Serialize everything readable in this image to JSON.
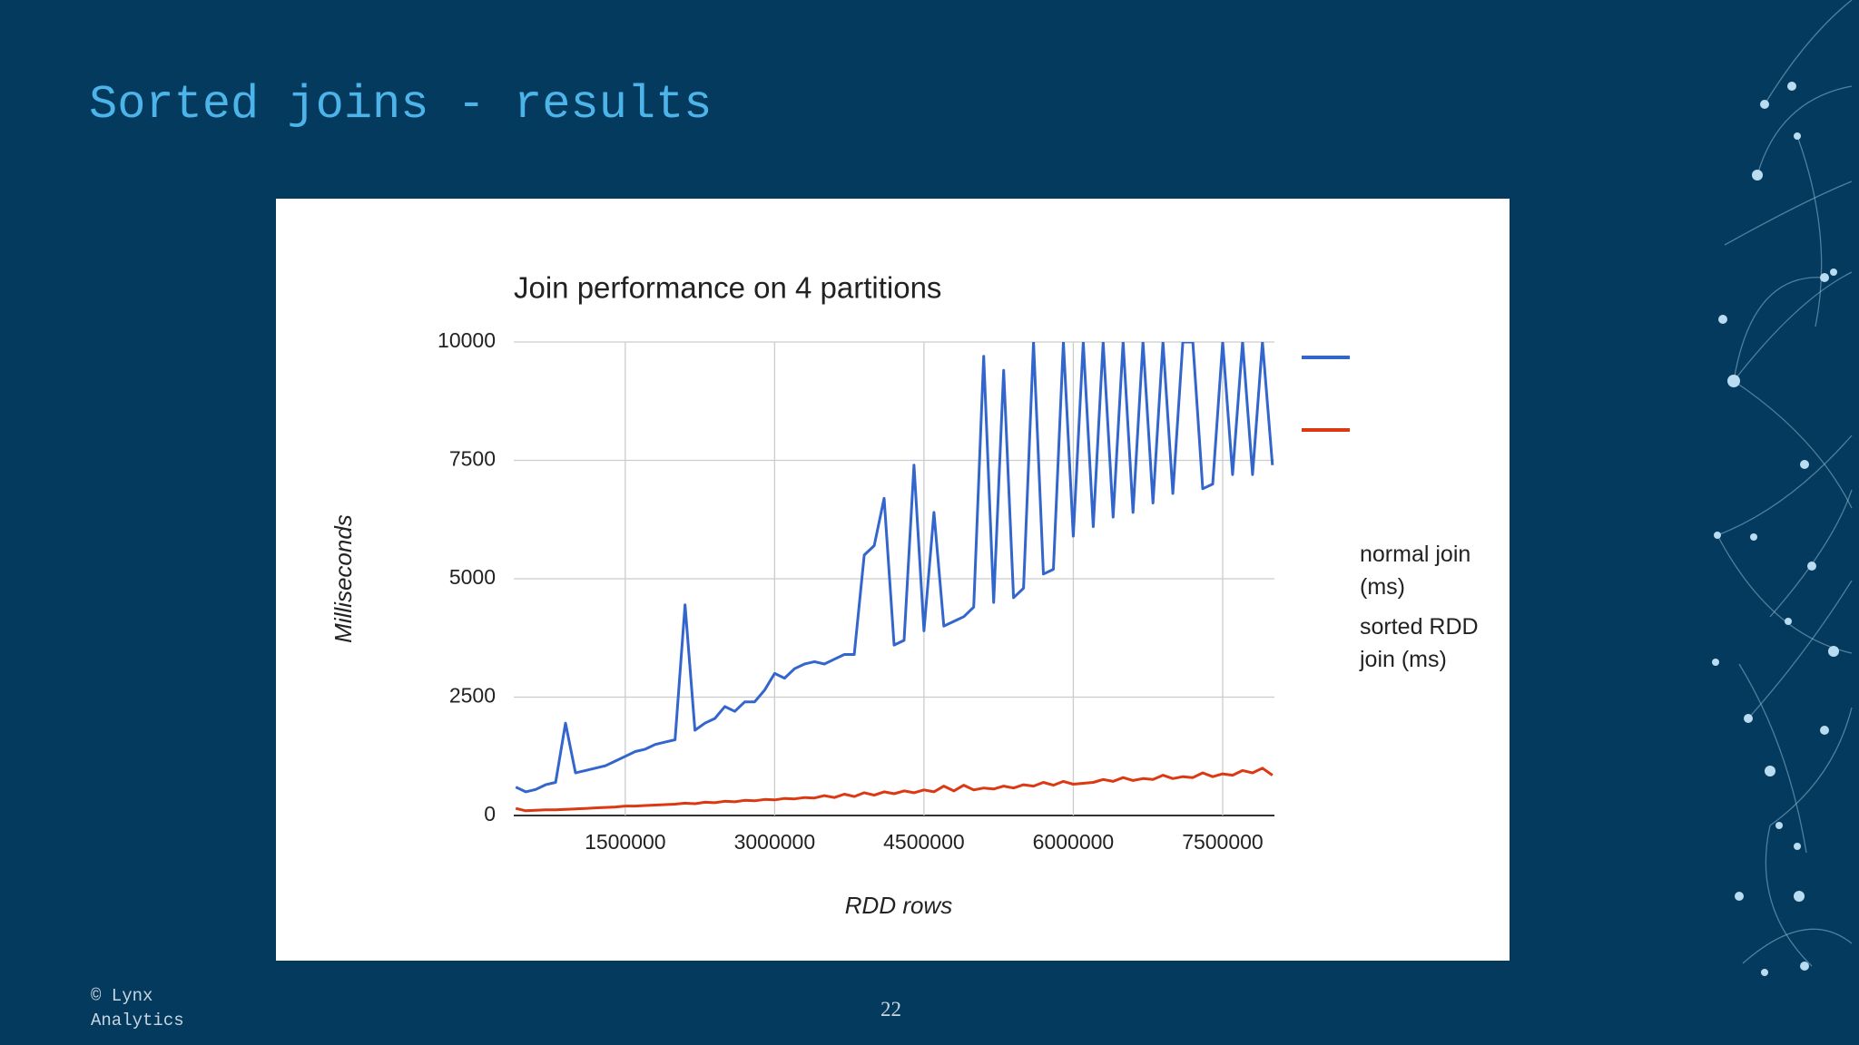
{
  "slide": {
    "title": "Sorted joins - results",
    "footer": "© Lynx Analytics",
    "page_number": "22"
  },
  "chart_data": {
    "type": "line",
    "title": "Join performance on 4 partitions",
    "x_label": "RDD rows",
    "y_label": "Milliseconds",
    "x": [
      400000,
      500000,
      600000,
      700000,
      800000,
      900000,
      1000000,
      1100000,
      1200000,
      1300000,
      1400000,
      1500000,
      1600000,
      1700000,
      1800000,
      1900000,
      2000000,
      2100000,
      2200000,
      2300000,
      2400000,
      2500000,
      2600000,
      2700000,
      2800000,
      2900000,
      3000000,
      3100000,
      3200000,
      3300000,
      3400000,
      3500000,
      3600000,
      3700000,
      3800000,
      3900000,
      4000000,
      4100000,
      4200000,
      4300000,
      4400000,
      4500000,
      4600000,
      4700000,
      4800000,
      4900000,
      5000000,
      5100000,
      5200000,
      5300000,
      5400000,
      5500000,
      5600000,
      5700000,
      5800000,
      5900000,
      6000000,
      6100000,
      6200000,
      6300000,
      6400000,
      6500000,
      6600000,
      6700000,
      6800000,
      6900000,
      7000000,
      7100000,
      7200000,
      7300000,
      7400000,
      7500000,
      7600000,
      7700000,
      7800000,
      7900000,
      8000000
    ],
    "series": [
      {
        "name": "normal join (ms)",
        "color": "#3366cc",
        "values": [
          600,
          500,
          550,
          650,
          700,
          1950,
          900,
          950,
          1000,
          1050,
          1150,
          1250,
          1350,
          1400,
          1500,
          1550,
          1600,
          4450,
          1800,
          1950,
          2050,
          2300,
          2200,
          2400,
          2400,
          2650,
          3000,
          2900,
          3100,
          3200,
          3250,
          3200,
          3300,
          3400,
          3400,
          5500,
          5700,
          6700,
          3600,
          3700,
          7400,
          3900,
          6400,
          4000,
          4100,
          4200,
          4400,
          9700,
          4500,
          9400,
          4600,
          4800,
          10000,
          5100,
          5200,
          10000,
          5900,
          10000,
          6100,
          10000,
          6300,
          10000,
          6400,
          10000,
          6600,
          10000,
          6800,
          10000,
          10000,
          6900,
          7000,
          10000,
          7200,
          10000,
          7200,
          10000,
          7400
        ]
      },
      {
        "name": "sorted RDD join (ms)",
        "color": "#dc3912",
        "values": [
          150,
          100,
          110,
          120,
          120,
          130,
          140,
          150,
          160,
          170,
          180,
          200,
          200,
          210,
          220,
          230,
          240,
          260,
          250,
          280,
          270,
          300,
          290,
          320,
          310,
          340,
          330,
          360,
          350,
          380,
          370,
          420,
          380,
          450,
          400,
          480,
          430,
          500,
          460,
          520,
          480,
          540,
          500,
          620,
          520,
          640,
          540,
          580,
          560,
          620,
          580,
          650,
          620,
          700,
          640,
          720,
          660,
          680,
          700,
          760,
          720,
          800,
          740,
          780,
          760,
          850,
          780,
          820,
          800,
          900,
          820,
          880,
          850,
          950,
          900,
          1000,
          850
        ]
      }
    ],
    "xlim": [
      380000,
      8020000
    ],
    "ylim": [
      0,
      10000
    ],
    "xticks": [
      1500000,
      3000000,
      4500000,
      6000000,
      7500000
    ],
    "yticks": [
      0,
      2500,
      5000,
      7500,
      10000
    ],
    "grid": true,
    "legend": "right"
  }
}
